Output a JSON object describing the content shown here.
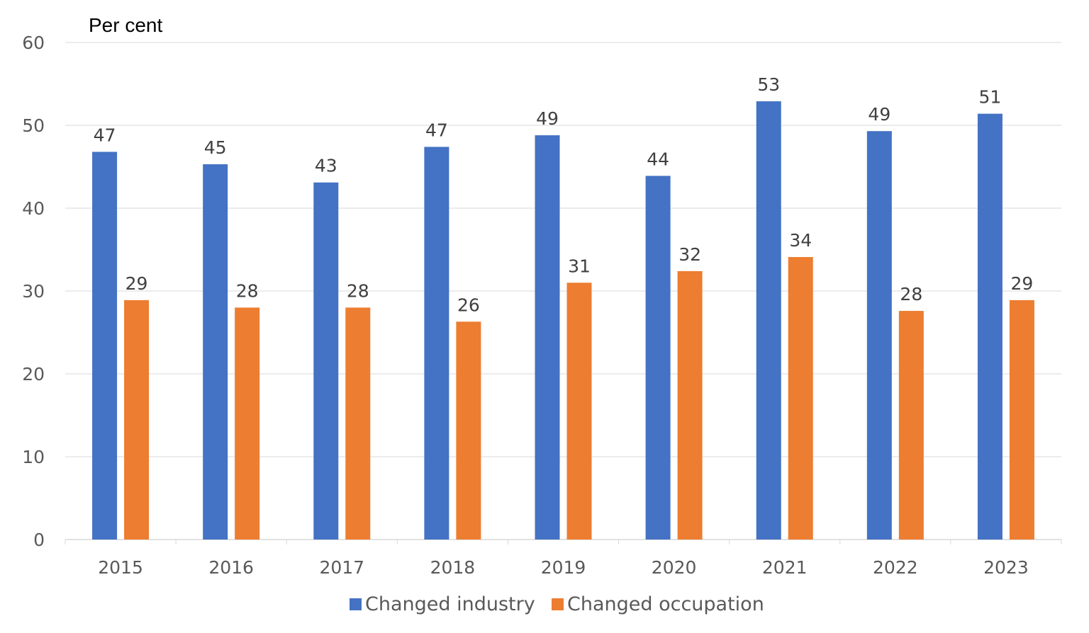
{
  "chart_data": {
    "type": "bar",
    "ylabel": "Per cent",
    "ylim": [
      0,
      60
    ],
    "yticks": [
      0,
      10,
      20,
      30,
      40,
      50,
      60
    ],
    "grid": true,
    "legend_position": "bottom",
    "categories": [
      "2015",
      "2016",
      "2017",
      "2018",
      "2019",
      "2020",
      "2021",
      "2022",
      "2023"
    ],
    "series": [
      {
        "name": "Changed industry",
        "color": "#4472C4",
        "values": [
          46.8,
          45.3,
          43.1,
          47.4,
          48.8,
          43.9,
          52.9,
          49.3,
          51.4
        ],
        "labels": [
          "47",
          "45",
          "43",
          "47",
          "49",
          "44",
          "53",
          "49",
          "51"
        ]
      },
      {
        "name": "Changed occupation",
        "color": "#ED7D31",
        "values": [
          28.9,
          28.0,
          28.0,
          26.3,
          31.0,
          32.4,
          34.1,
          27.6,
          28.9
        ],
        "labels": [
          "29",
          "28",
          "28",
          "26",
          "31",
          "32",
          "34",
          "28",
          "29"
        ]
      }
    ]
  }
}
